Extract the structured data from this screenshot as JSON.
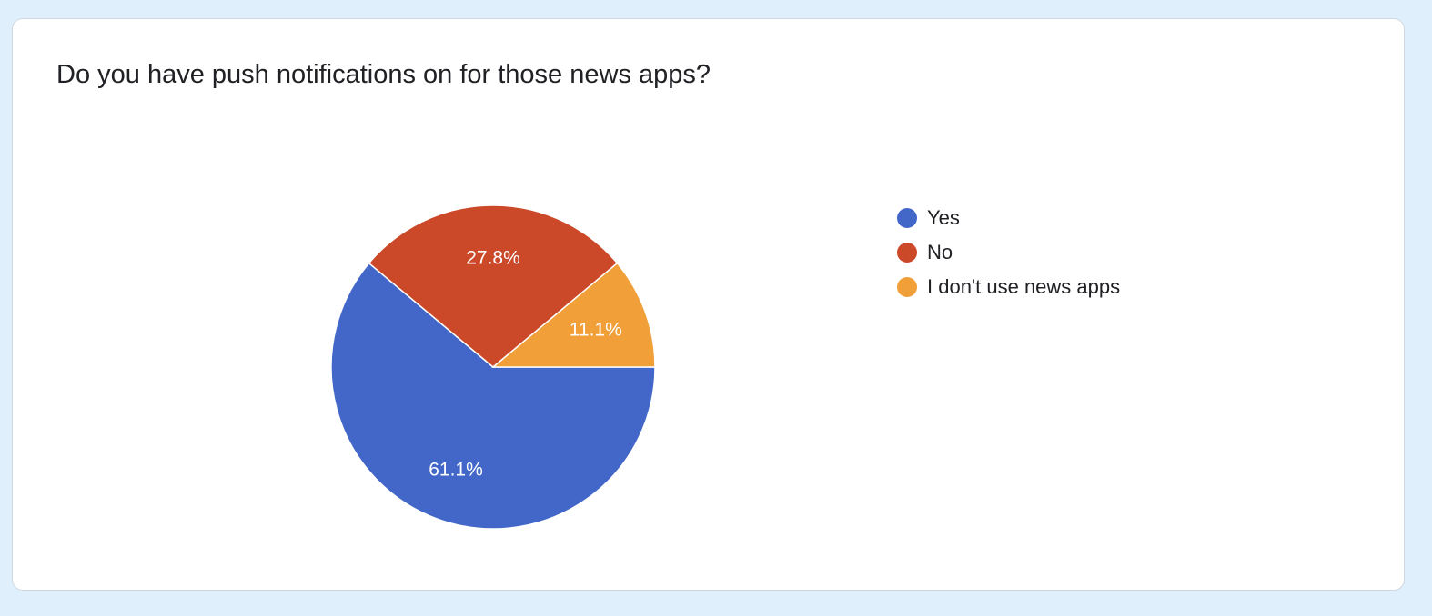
{
  "survey": {
    "question": "Do you have push notifications on for those news apps?"
  },
  "chart_data": {
    "type": "pie",
    "title": "Do you have push notifications on for those news apps?",
    "slices": [
      {
        "label": "Yes",
        "value": 61.1,
        "display": "61.1%",
        "color": "#4267c8"
      },
      {
        "label": "No",
        "value": 27.8,
        "display": "27.8%",
        "color": "#cb4828"
      },
      {
        "label": "I don't use news apps",
        "value": 11.1,
        "display": "11.1%",
        "color": "#f09f39"
      }
    ],
    "legend_position": "right"
  }
}
